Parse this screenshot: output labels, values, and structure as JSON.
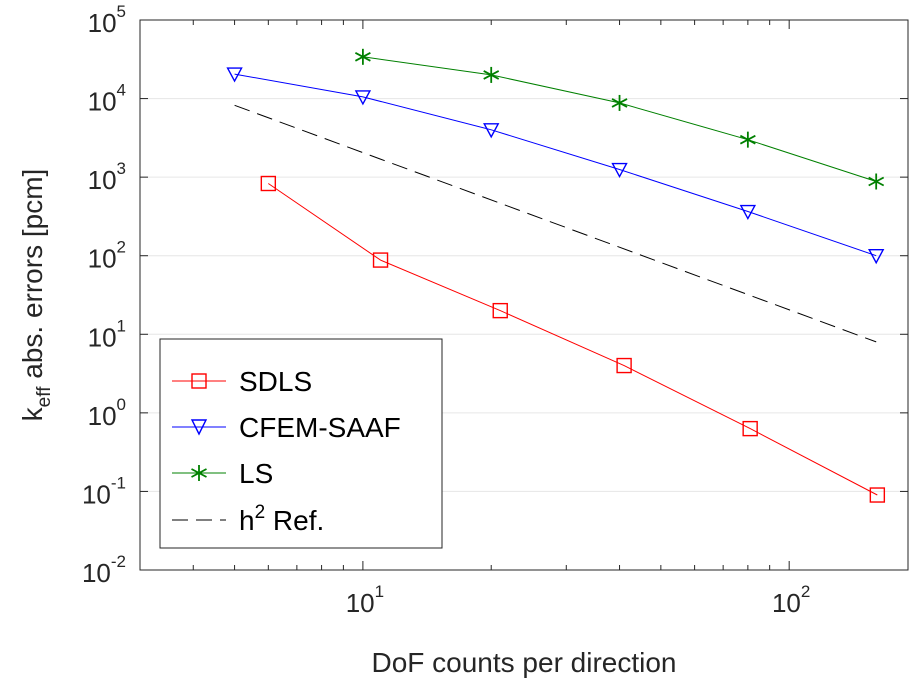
{
  "chart_data": {
    "type": "line",
    "x_scale": "log",
    "y_scale": "log",
    "xlabel": "DoF counts per direction",
    "ylabel_main": "k",
    "ylabel_sub": "eff",
    "ylabel_rest": " abs. errors [pcm]",
    "xlim": [
      3,
      190
    ],
    "ylim": [
      0.01,
      100000
    ],
    "x_ticks": [
      {
        "value": 10,
        "base": "10",
        "exp": "1"
      },
      {
        "value": 100,
        "base": "10",
        "exp": "2"
      }
    ],
    "y_ticks": [
      {
        "value": 0.01,
        "base": "10",
        "exp": "-2"
      },
      {
        "value": 0.1,
        "base": "10",
        "exp": "-1"
      },
      {
        "value": 1,
        "base": "10",
        "exp": "0"
      },
      {
        "value": 10,
        "base": "10",
        "exp": "1"
      },
      {
        "value": 100,
        "base": "10",
        "exp": "2"
      },
      {
        "value": 1000,
        "base": "10",
        "exp": "3"
      },
      {
        "value": 10000,
        "base": "10",
        "exp": "4"
      },
      {
        "value": 100000,
        "base": "10",
        "exp": "5"
      }
    ],
    "grid": "horizontal-major",
    "legend_position": "bottom-left",
    "series": [
      {
        "name": "SDLS",
        "color": "#ff0000",
        "marker": "square",
        "dashed": false,
        "x": [
          6,
          11,
          21,
          41,
          81,
          161
        ],
        "y": [
          830,
          88,
          20,
          4,
          0.63,
          0.09
        ]
      },
      {
        "name": "CFEM-SAAF",
        "color": "#0000ff",
        "marker": "triangle-down",
        "dashed": false,
        "x": [
          5,
          10,
          20,
          40,
          80,
          160
        ],
        "y": [
          20500,
          10500,
          4000,
          1250,
          365,
          100
        ]
      },
      {
        "name": "LS",
        "color": "#008000",
        "marker": "asterisk",
        "dashed": false,
        "x": [
          10,
          20,
          40,
          80,
          160
        ],
        "y": [
          34000,
          20000,
          8800,
          3000,
          880
        ]
      },
      {
        "name": "h",
        "name_sup": "2",
        "name_rest": " Ref.",
        "color": "#000000",
        "marker": "none",
        "dashed": true,
        "x": [
          5,
          160
        ],
        "y": [
          8200,
          8
        ]
      }
    ]
  }
}
